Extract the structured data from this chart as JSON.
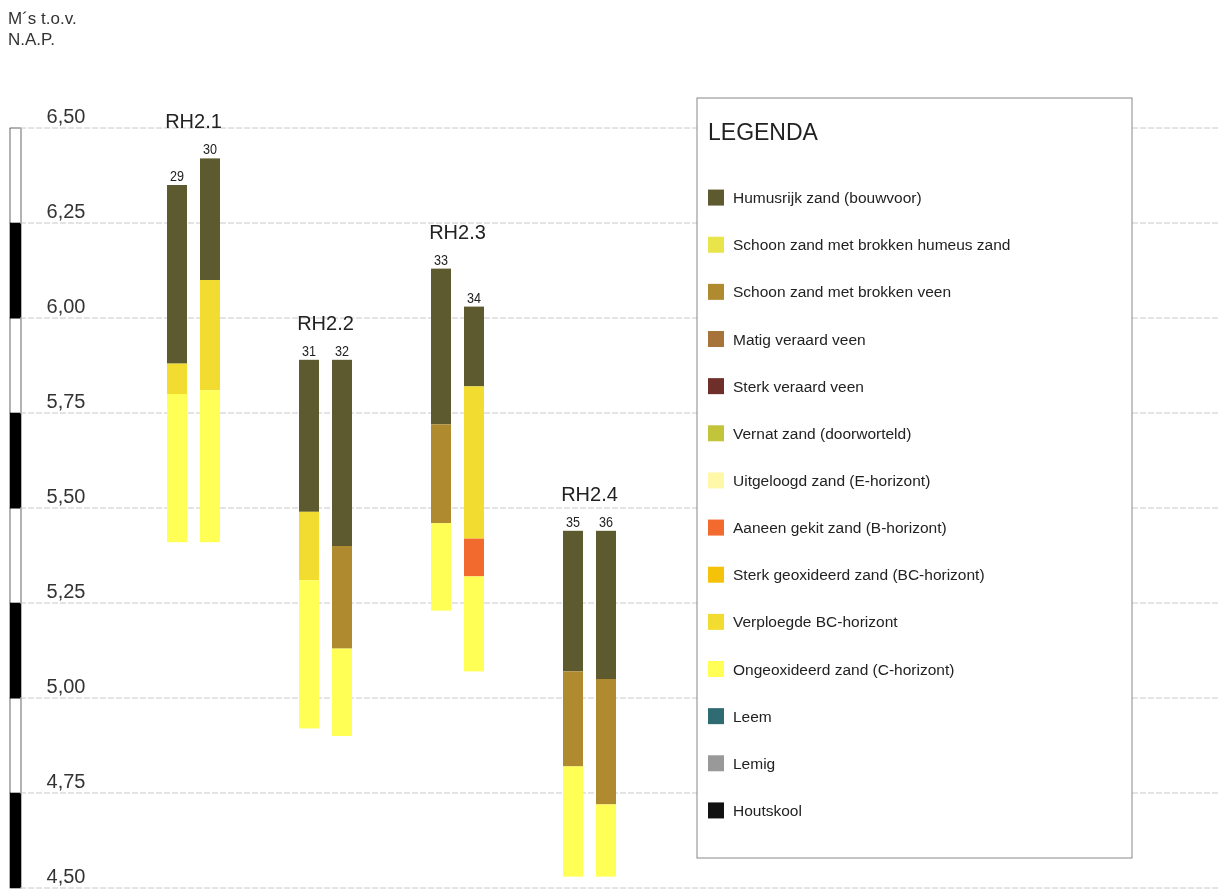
{
  "chart_data": {
    "type": "bar",
    "ylabel": "M´s t.o.v. N.A.P.",
    "legend_title": "LEGENDA",
    "legend": "right",
    "grid": "y",
    "categories": [
      "29",
      "30",
      null,
      null,
      "31",
      "32",
      null,
      null,
      "33",
      "34",
      null,
      null,
      "35",
      "36"
    ],
    "ylim": [
      4.5,
      6.5
    ],
    "yticks": [
      {
        "value": 4.5,
        "label": "4,50"
      },
      {
        "value": 4.75,
        "label": "4,75"
      },
      {
        "value": 5.0,
        "label": "5,00"
      },
      {
        "value": 5.25,
        "label": "5,25"
      },
      {
        "value": 5.5,
        "label": "5,50"
      },
      {
        "value": 5.75,
        "label": "5,75"
      },
      {
        "value": 6.0,
        "label": "6,00"
      },
      {
        "value": 6.25,
        "label": "6,25"
      },
      {
        "value": 6.5,
        "label": "6,50"
      }
    ],
    "annotations": [
      "RH2.1",
      "RH2.2",
      "RH2.3",
      "RH2.4"
    ],
    "series": [
      {
        "name": "Humusrijk zand (bouwvoor)",
        "color": "#5c5a2e",
        "base": [
          5.88,
          6.1,
          null,
          null,
          5.49,
          5.4,
          null,
          null,
          5.72,
          5.82,
          null,
          null,
          5.07,
          5.05
        ],
        "values": [
          0.47,
          0.32,
          null,
          null,
          0.4,
          0.49,
          null,
          null,
          0.41,
          0.21,
          null,
          null,
          0.37,
          0.39
        ]
      },
      {
        "name": "Schoon zand met brokken humeus zand",
        "color": "#e8e44a",
        "base": [
          null,
          null,
          null,
          null,
          null,
          null,
          null,
          null,
          null,
          null,
          null,
          null,
          null,
          null
        ],
        "values": [
          null,
          null,
          null,
          null,
          null,
          null,
          null,
          null,
          null,
          null,
          null,
          null,
          null,
          null
        ]
      },
      {
        "name": "Schoon zand met brokken veen",
        "color": "#b08a2e",
        "base": [
          null,
          null,
          null,
          null,
          null,
          5.13,
          null,
          null,
          5.46,
          null,
          null,
          null,
          4.82,
          4.72
        ],
        "values": [
          null,
          null,
          null,
          null,
          null,
          0.27,
          null,
          null,
          0.26,
          null,
          null,
          null,
          0.25,
          0.33
        ]
      },
      {
        "name": "Matig  veraard veen",
        "color": "#a8733a",
        "base": [
          null,
          null,
          null,
          null,
          null,
          null,
          null,
          null,
          null,
          null,
          null,
          null,
          null,
          null
        ],
        "values": [
          null,
          null,
          null,
          null,
          null,
          null,
          null,
          null,
          null,
          null,
          null,
          null,
          null,
          null
        ]
      },
      {
        "name": "Sterk veraard veen",
        "color": "#6e2e2a",
        "base": [
          null,
          null,
          null,
          null,
          null,
          null,
          null,
          null,
          null,
          null,
          null,
          null,
          null,
          null
        ],
        "values": [
          null,
          null,
          null,
          null,
          null,
          null,
          null,
          null,
          null,
          null,
          null,
          null,
          null,
          null
        ]
      },
      {
        "name": "Vernat zand (doorworteld)",
        "color": "#c2c43a",
        "base": [
          null,
          null,
          null,
          null,
          null,
          null,
          null,
          null,
          null,
          null,
          null,
          null,
          null,
          null
        ],
        "values": [
          null,
          null,
          null,
          null,
          null,
          null,
          null,
          null,
          null,
          null,
          null,
          null,
          null,
          null
        ]
      },
      {
        "name": "Uitgeloogd zand (E-horizont)",
        "color": "#fff8a8",
        "base": [
          null,
          null,
          null,
          null,
          null,
          null,
          null,
          null,
          null,
          null,
          null,
          null,
          null,
          null
        ],
        "values": [
          null,
          null,
          null,
          null,
          null,
          null,
          null,
          null,
          null,
          null,
          null,
          null,
          null,
          null
        ]
      },
      {
        "name": "Aaneen gekit zand (B-horizont)",
        "color": "#f26a2e",
        "base": [
          null,
          null,
          null,
          null,
          null,
          null,
          null,
          null,
          null,
          5.32,
          null,
          null,
          null,
          null
        ],
        "values": [
          null,
          null,
          null,
          null,
          null,
          null,
          null,
          null,
          null,
          0.1,
          null,
          null,
          null,
          null
        ]
      },
      {
        "name": "Sterk geoxideerd zand (BC-horizont)",
        "color": "#f5c20a",
        "base": [
          null,
          null,
          null,
          null,
          null,
          null,
          null,
          null,
          null,
          null,
          null,
          null,
          null,
          null
        ],
        "values": [
          null,
          null,
          null,
          null,
          null,
          null,
          null,
          null,
          null,
          null,
          null,
          null,
          null,
          null
        ]
      },
      {
        "name": "Verploegde BC-horizont",
        "color": "#f2dc30",
        "base": [
          5.8,
          5.81,
          null,
          null,
          5.31,
          null,
          null,
          null,
          null,
          5.42,
          null,
          null,
          null,
          null
        ],
        "values": [
          0.08,
          0.29,
          null,
          null,
          0.18,
          null,
          null,
          null,
          null,
          0.4,
          null,
          null,
          null,
          null
        ]
      },
      {
        "name": "Ongeoxideerd zand (C-horizont)",
        "color": "#ffff55",
        "base": [
          5.41,
          5.41,
          null,
          null,
          4.92,
          4.9,
          null,
          null,
          5.23,
          5.07,
          null,
          null,
          4.53,
          4.53
        ],
        "values": [
          0.39,
          0.4,
          null,
          null,
          0.39,
          0.23,
          null,
          null,
          0.23,
          0.25,
          null,
          null,
          0.29,
          0.19
        ]
      },
      {
        "name": "Leem",
        "color": "#2f6b72",
        "base": [
          null,
          null,
          null,
          null,
          null,
          null,
          null,
          null,
          null,
          null,
          null,
          null,
          null,
          null
        ],
        "values": [
          null,
          null,
          null,
          null,
          null,
          null,
          null,
          null,
          null,
          null,
          null,
          null,
          null,
          null
        ]
      },
      {
        "name": "Lemig",
        "color": "#999999",
        "base": [
          null,
          null,
          null,
          null,
          null,
          null,
          null,
          null,
          null,
          null,
          null,
          null,
          null,
          null
        ],
        "values": [
          null,
          null,
          null,
          null,
          null,
          null,
          null,
          null,
          null,
          null,
          null,
          null,
          null,
          null
        ]
      },
      {
        "name": "Houtskool",
        "color": "#111111",
        "base": [
          null,
          null,
          null,
          null,
          null,
          null,
          null,
          null,
          null,
          null,
          null,
          null,
          null,
          null
        ],
        "values": [
          null,
          null,
          null,
          null,
          null,
          null,
          null,
          null,
          null,
          null,
          null,
          null,
          null,
          null
        ]
      }
    ]
  }
}
